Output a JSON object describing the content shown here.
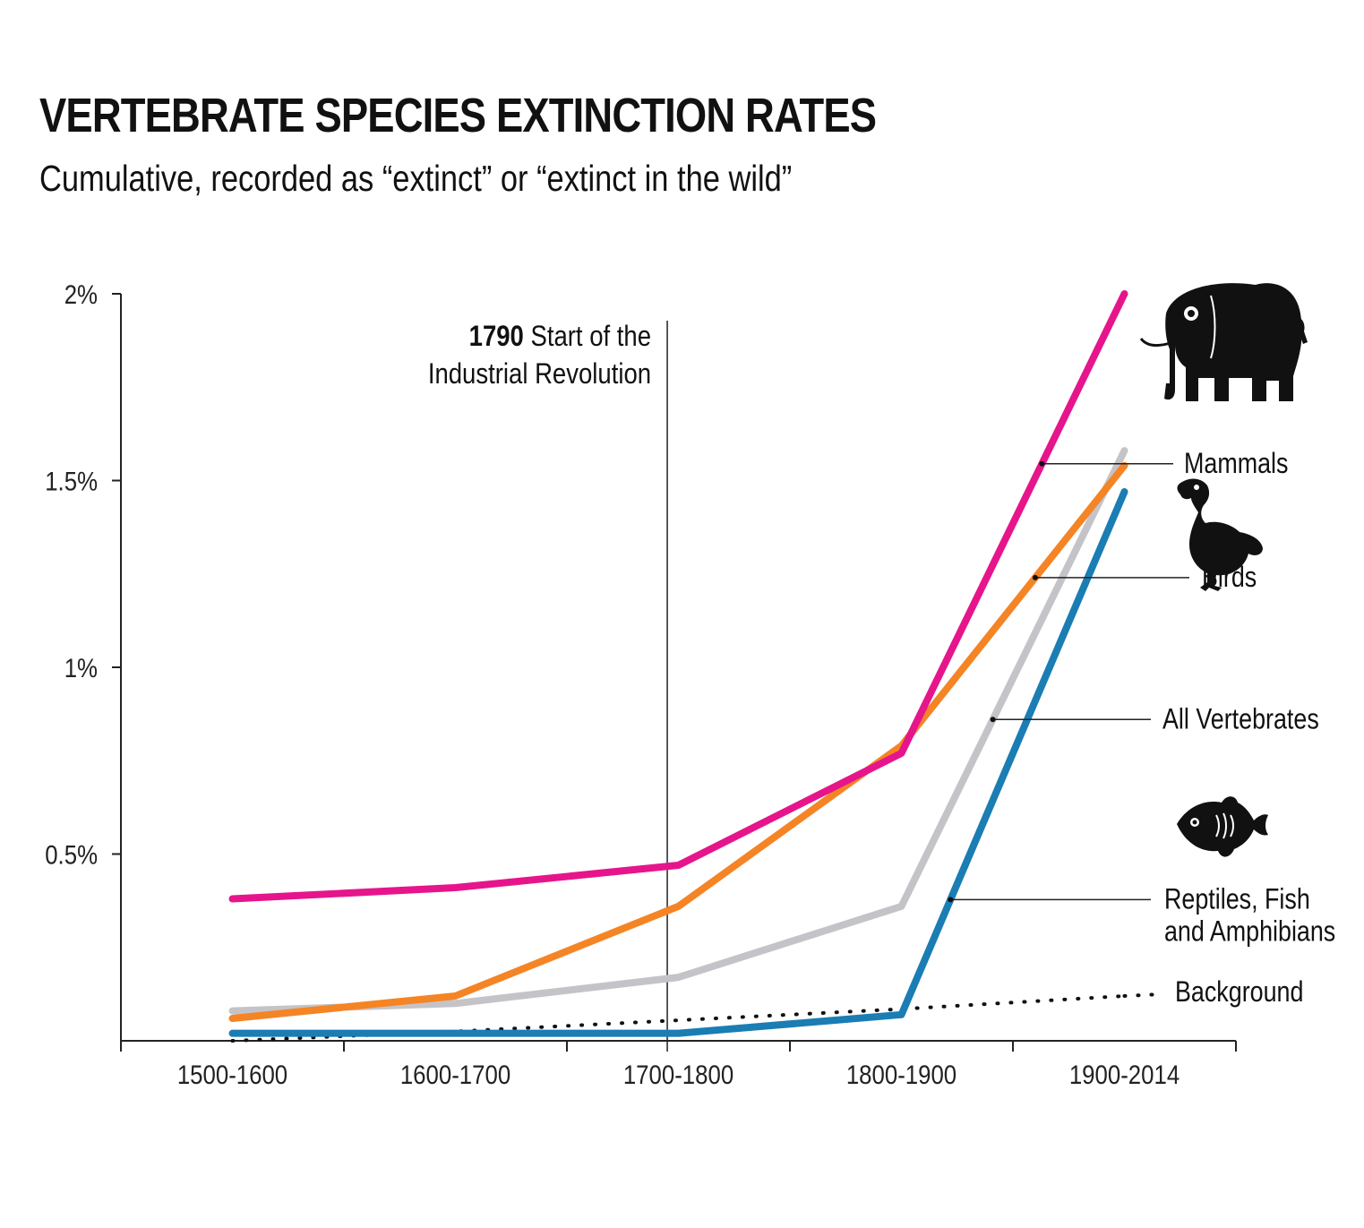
{
  "header": {
    "title": "VERTEBRATE SPECIES EXTINCTION RATES",
    "subtitle": "Cumulative, recorded as “extinct” or “extinct in the wild”"
  },
  "chart_data": {
    "type": "line",
    "title": "VERTEBRATE SPECIES EXTINCTION RATES",
    "subtitle": "Cumulative, recorded as “extinct” or “extinct in the wild”",
    "xlabel": "",
    "ylabel": "",
    "categories": [
      "1500-1600",
      "1600-1700",
      "1700-1800",
      "1800-1900",
      "1900-2014"
    ],
    "ylim": [
      0,
      2
    ],
    "yticks": [
      {
        "value": 0.5,
        "label": "0.5%"
      },
      {
        "value": 1,
        "label": "1%"
      },
      {
        "value": 1.5,
        "label": "1.5%"
      },
      {
        "value": 2,
        "label": "2%"
      }
    ],
    "grid": false,
    "series": [
      {
        "name": "Mammals",
        "color": "#e6158c",
        "dotted": false,
        "icon": "elephant-icon",
        "values": [
          0.38,
          0.41,
          0.47,
          0.77,
          2.0
        ]
      },
      {
        "name": "Birds",
        "color": "#f58425",
        "dotted": false,
        "icon": "dodo-icon",
        "values": [
          0.06,
          0.12,
          0.36,
          0.79,
          1.54
        ]
      },
      {
        "name": "All Vertebrates",
        "color": "#c4c4c8",
        "dotted": false,
        "icon": "",
        "values": [
          0.08,
          0.1,
          0.17,
          0.36,
          1.58
        ]
      },
      {
        "name": "Reptiles, Fish and Amphibians",
        "label_lines": [
          "Reptiles, Fish",
          "and Amphibians"
        ],
        "color": "#1a7db3",
        "dotted": false,
        "icon": "fish-icon",
        "values": [
          0.02,
          0.02,
          0.02,
          0.07,
          1.47
        ]
      },
      {
        "name": "Background",
        "color": "#111111",
        "dotted": true,
        "icon": "",
        "values": [
          0.0,
          0.025,
          0.055,
          0.085,
          0.12
        ]
      }
    ],
    "annotations": [
      {
        "year_label": "1790",
        "text_lines": [
          "Start of the",
          "Industrial Revolution"
        ],
        "category_position": 2.45
      }
    ]
  }
}
